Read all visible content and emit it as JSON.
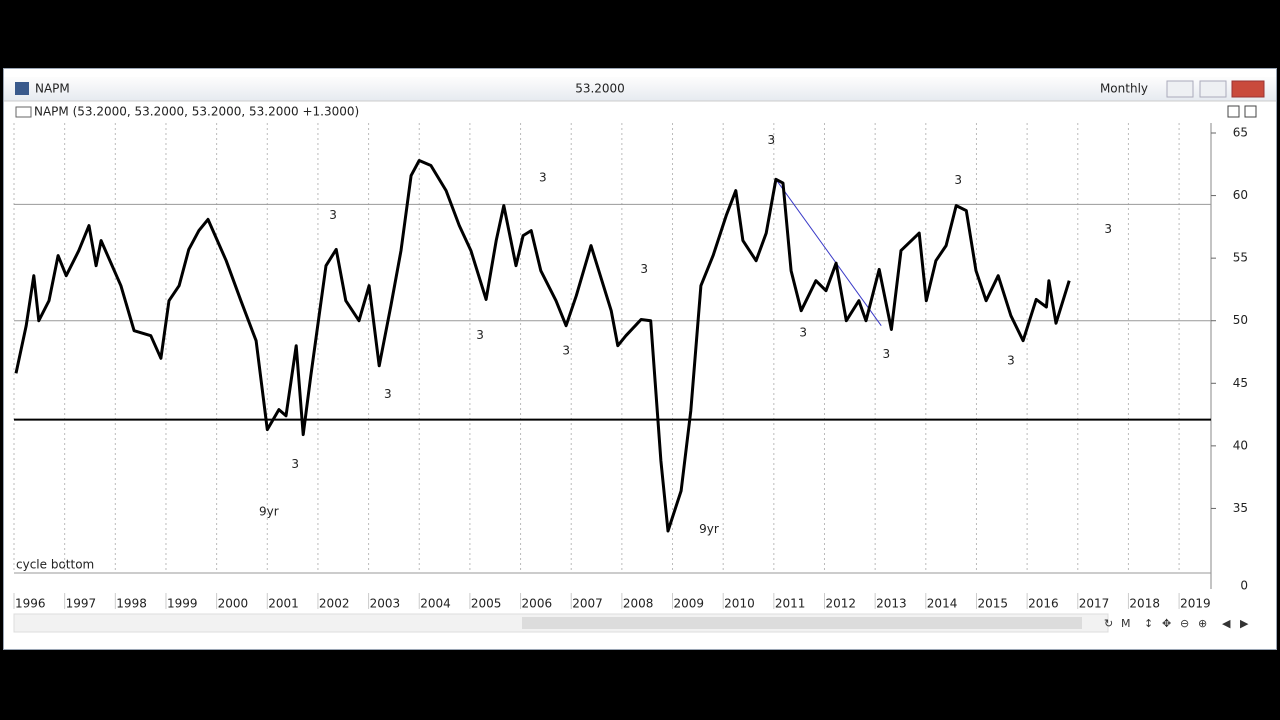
{
  "window": {
    "title": "NAPM",
    "last_value": "53.2000",
    "period": "Monthly",
    "series_caption": "NAPM (53.2000, 53.2000, 53.2000, 53.2000 +1.3000)",
    "lower_panel_label": "cycle bottom",
    "lower_panel_tick": 0
  },
  "chart_data": {
    "type": "line",
    "color": "#000000",
    "x": [
      1996.04,
      1996.24,
      1996.39,
      1996.49,
      1996.69,
      1996.87,
      1997.03,
      1997.28,
      1997.48,
      1997.62,
      1997.72,
      1998.11,
      1998.37,
      1998.7,
      1998.9,
      1999.06,
      1999.26,
      1999.45,
      1999.65,
      1999.83,
      2000.19,
      2000.48,
      2000.78,
      2001.0,
      2001.23,
      2001.37,
      2001.57,
      2001.71,
      2001.86,
      2002.16,
      2002.36,
      2002.55,
      2002.81,
      2003.01,
      2003.21,
      2003.44,
      2003.64,
      2003.84,
      2004.0,
      2004.23,
      2004.53,
      2004.79,
      2005.02,
      2005.32,
      2005.52,
      2005.67,
      2005.91,
      2006.05,
      2006.21,
      2006.4,
      2006.7,
      2006.9,
      2007.1,
      2007.39,
      2007.79,
      2007.92,
      2008.08,
      2008.38,
      2008.57,
      2008.77,
      2008.91,
      2009.17,
      2009.36,
      2009.56,
      2009.8,
      2010.06,
      2010.25,
      2010.39,
      2010.65,
      2010.85,
      2011.04,
      2011.18,
      2011.34,
      2011.54,
      2011.83,
      2012.03,
      2012.23,
      2012.43,
      2012.68,
      2012.82,
      2013.08,
      2013.32,
      2013.51,
      2013.87,
      2014.01,
      2014.2,
      2014.4,
      2014.6,
      2014.8,
      2014.99,
      2015.19,
      2015.43,
      2015.68,
      2015.92,
      2016.18,
      2016.38,
      2016.43,
      2016.57,
      2016.83
    ],
    "values": [
      45.8,
      49.6,
      53.6,
      50,
      51.6,
      55.2,
      53.6,
      55.6,
      57.6,
      54.4,
      56.4,
      52.8,
      49.2,
      48.8,
      47,
      51.6,
      52.8,
      55.7,
      57.2,
      58.1,
      54.8,
      51.6,
      48.4,
      41.3,
      42.9,
      42.4,
      48,
      40.9,
      45.6,
      54.4,
      55.7,
      51.6,
      50,
      52.8,
      46.4,
      51.2,
      55.6,
      61.6,
      62.8,
      62.4,
      60.4,
      57.6,
      55.6,
      51.7,
      56.4,
      59.2,
      54.4,
      56.8,
      57.2,
      54,
      51.6,
      49.6,
      52,
      56,
      50.8,
      48,
      48.8,
      50.1,
      50,
      38.8,
      33.2,
      36.4,
      42.8,
      52.8,
      55.2,
      58.4,
      60.4,
      56.4,
      54.8,
      57,
      61.3,
      61,
      54,
      50.8,
      53.2,
      52.4,
      54.6,
      50,
      51.6,
      50,
      54.1,
      49.3,
      55.6,
      57,
      51.6,
      54.8,
      56,
      59.2,
      58.8,
      54,
      51.6,
      53.6,
      50.4,
      48.4,
      51.7,
      51.1,
      53.2,
      49.8,
      53.2
    ],
    "xlim": [
      1996,
      2019.63
    ],
    "ylim": [
      30,
      65.8
    ],
    "xticks": [
      1996,
      1997,
      1998,
      1999,
      2000,
      2001,
      2002,
      2003,
      2004,
      2005,
      2006,
      2007,
      2008,
      2009,
      2010,
      2011,
      2012,
      2013,
      2014,
      2015,
      2016,
      2017,
      2018,
      2019
    ],
    "yticks": [
      35,
      40,
      45,
      50,
      55,
      60,
      65
    ],
    "reference_lines": [
      {
        "value": 59.3,
        "color": "#999999",
        "width": 1
      },
      {
        "value": 50,
        "color": "#999999",
        "width": 1
      },
      {
        "value": 42.1,
        "color": "#000000",
        "width": 2
      }
    ],
    "trendline": {
      "x": [
        2011.04,
        2013.12
      ],
      "y": [
        61.3,
        49.6
      ],
      "color": "#3b3bc8"
    },
    "annotations": [
      {
        "text": "3",
        "x": 2010.95,
        "y": 64.4
      },
      {
        "text": "3",
        "x": 2006.44,
        "y": 61.4
      },
      {
        "text": "3",
        "x": 2002.3,
        "y": 58.4
      },
      {
        "text": "3",
        "x": 2008.44,
        "y": 54.1
      },
      {
        "text": "3",
        "x": 2005.2,
        "y": 48.8
      },
      {
        "text": "3",
        "x": 2006.9,
        "y": 47.6
      },
      {
        "text": "3",
        "x": 2003.38,
        "y": 44.1
      },
      {
        "text": "3",
        "x": 2001.55,
        "y": 38.5
      },
      {
        "text": "3",
        "x": 2011.58,
        "y": 49
      },
      {
        "text": "3",
        "x": 2013.22,
        "y": 47.3
      },
      {
        "text": "3",
        "x": 2014.64,
        "y": 61.2
      },
      {
        "text": "3",
        "x": 2015.68,
        "y": 46.8
      },
      {
        "text": "3",
        "x": 2017.6,
        "y": 57.3
      },
      {
        "text": "9yr",
        "x": 2001.03,
        "y": 34.7
      },
      {
        "text": "9yr",
        "x": 2009.72,
        "y": 33.3
      }
    ]
  }
}
